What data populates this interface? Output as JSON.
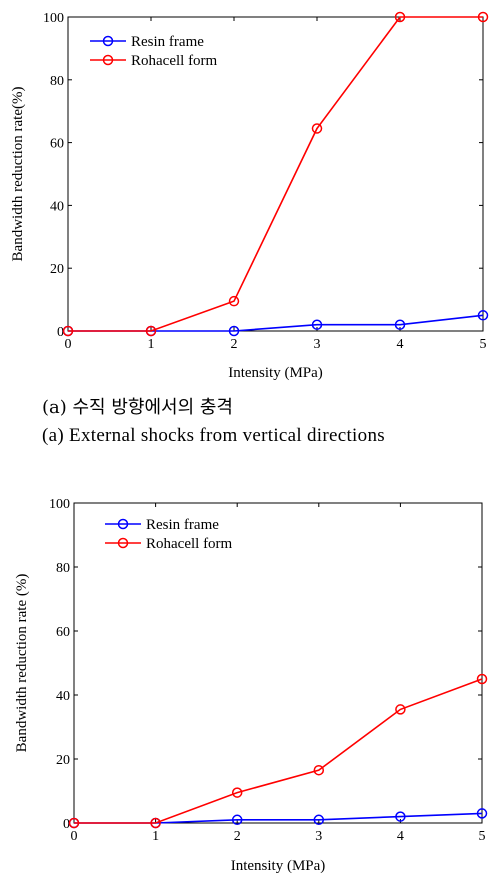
{
  "chart_data": [
    {
      "type": "line",
      "x": [
        0,
        1,
        2,
        3,
        4,
        5
      ],
      "series": [
        {
          "name": "Resin frame",
          "color": "#0000ff",
          "values": [
            0,
            0,
            0,
            2,
            2,
            5
          ]
        },
        {
          "name": "Rohacell form",
          "color": "#ff0000",
          "values": [
            0,
            0,
            9.5,
            64.5,
            100,
            100
          ]
        }
      ],
      "xlabel": "Intensity (MPa)",
      "ylabel": "Bandwidth reduction rate(%)",
      "xlim": [
        0,
        5
      ],
      "ylim": [
        0,
        100
      ],
      "xticks": [
        "0",
        "1",
        "2",
        "3",
        "4",
        "5"
      ],
      "yticks": [
        "0",
        "20",
        "40",
        "60",
        "80",
        "100"
      ],
      "legend": "top-left",
      "grid": false
    },
    {
      "type": "line",
      "x": [
        0,
        1,
        2,
        3,
        4,
        5
      ],
      "series": [
        {
          "name": "Resin frame",
          "color": "#0000ff",
          "values": [
            0,
            0,
            1,
            1,
            2,
            3
          ]
        },
        {
          "name": "Rohacell form",
          "color": "#ff0000",
          "values": [
            0,
            0,
            9.5,
            16.5,
            35.5,
            45
          ]
        }
      ],
      "xlabel": "Intensity (MPa)",
      "ylabel": "Bandwidth reduction rate (%)",
      "xlim": [
        0,
        5
      ],
      "ylim": [
        0,
        100
      ],
      "xticks": [
        "0",
        "1",
        "2",
        "3",
        "4",
        "5"
      ],
      "yticks": [
        "0",
        "20",
        "40",
        "60",
        "80",
        "100"
      ],
      "legend": "top-left",
      "grid": false
    }
  ],
  "captions": {
    "a_korean": "(a) 수직 방향에서의 충격",
    "a_english": "(a) External shocks from vertical directions"
  }
}
